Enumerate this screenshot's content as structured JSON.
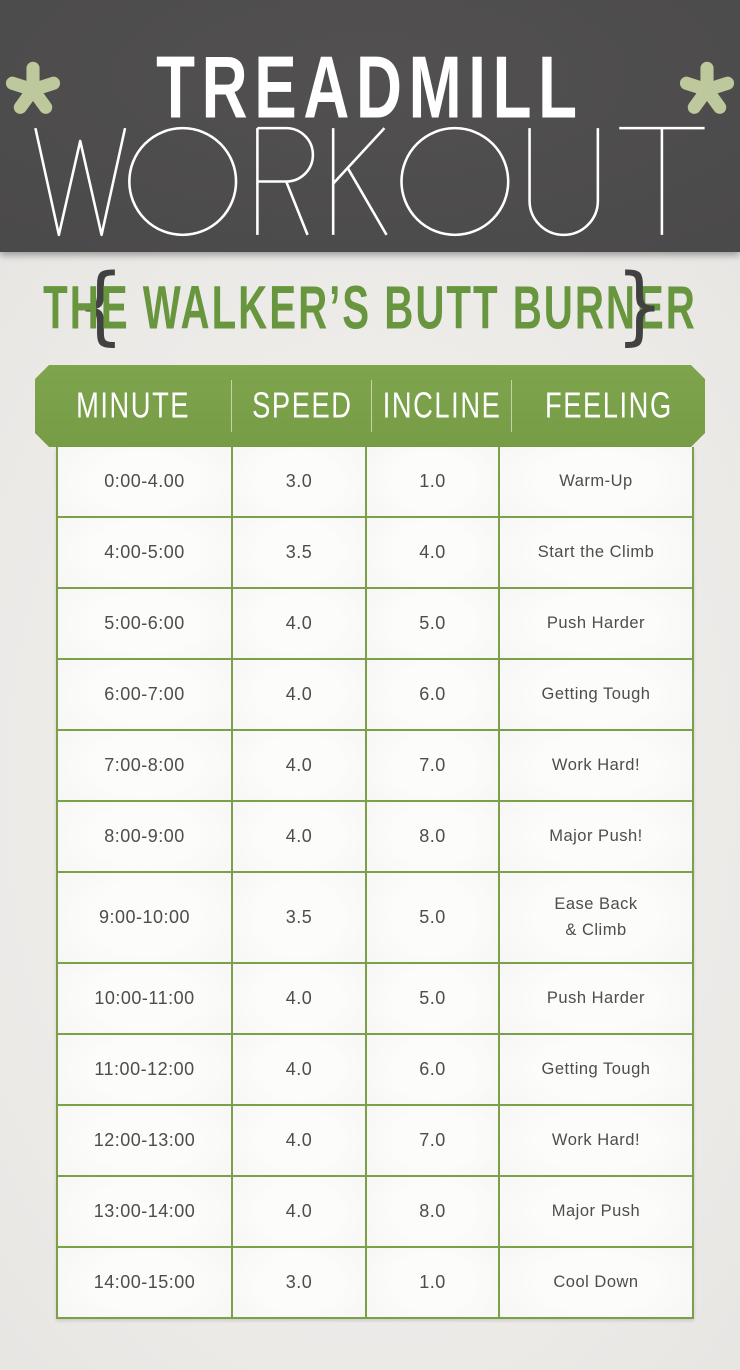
{
  "banner": {
    "title_line1": "TREADMILL",
    "title_line2": "WORKOUT",
    "bg_color": "#4a4949",
    "asterisk_color": "#bdc99c"
  },
  "subtitle": {
    "text": "THE WALKER’S BUTT BURNER",
    "brace_left": "{",
    "brace_right": "}",
    "text_color": "#68963e",
    "brace_color": "#424141"
  },
  "table": {
    "green_color": "#7ba04a",
    "header_text_color": "#ffffff",
    "cell_text_color": "#4e4d4d",
    "columns": [
      "MINUTE",
      "SPEED",
      "INCLINE",
      "FEELING"
    ],
    "rows": [
      {
        "minute": "0:00-4.00",
        "speed": "3.0",
        "incline": "1.0",
        "feeling": "Warm-Up"
      },
      {
        "minute": "4:00-5:00",
        "speed": "3.5",
        "incline": "4.0",
        "feeling": "Start the Climb"
      },
      {
        "minute": "5:00-6:00",
        "speed": "4.0",
        "incline": "5.0",
        "feeling": "Push Harder"
      },
      {
        "minute": "6:00-7:00",
        "speed": "4.0",
        "incline": "6.0",
        "feeling": "Getting Tough"
      },
      {
        "minute": "7:00-8:00",
        "speed": "4.0",
        "incline": "7.0",
        "feeling": "Work Hard!"
      },
      {
        "minute": "8:00-9:00",
        "speed": "4.0",
        "incline": "8.0",
        "feeling": "Major Push!"
      },
      {
        "minute": "9:00-10:00",
        "speed": "3.5",
        "incline": "5.0",
        "feeling": "Ease Back\n& Climb"
      },
      {
        "minute": "10:00-11:00",
        "speed": "4.0",
        "incline": "5.0",
        "feeling": "Push Harder"
      },
      {
        "minute": "11:00-12:00",
        "speed": "4.0",
        "incline": "6.0",
        "feeling": "Getting Tough"
      },
      {
        "minute": "12:00-13:00",
        "speed": "4.0",
        "incline": "7.0",
        "feeling": "Work Hard!"
      },
      {
        "minute": "13:00-14:00",
        "speed": "4.0",
        "incline": "8.0",
        "feeling": "Major Push"
      },
      {
        "minute": "14:00-15:00",
        "speed": "3.0",
        "incline": "1.0",
        "feeling": "Cool Down"
      }
    ]
  }
}
